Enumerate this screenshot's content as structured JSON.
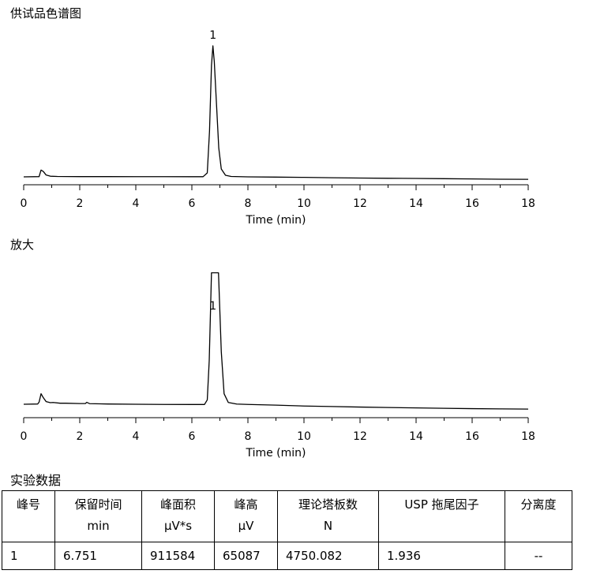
{
  "sections": {
    "top_title": "供试品色谱图",
    "zoom_title": "放大",
    "data_title": "实验数据"
  },
  "chart_data": [
    {
      "type": "line",
      "panel": "full",
      "xlabel": "Time (min)",
      "xlim": [
        0,
        18
      ],
      "xticks": [
        "0",
        "2",
        "4",
        "6",
        "8",
        "10",
        "12",
        "14",
        "16",
        "18"
      ],
      "peak_label": "1",
      "peak_label_x": 6.751,
      "series": [
        {
          "x": [
            0.0,
            0.55,
            0.62,
            0.7,
            0.8,
            0.95,
            1.2,
            2.0,
            3.0,
            4.0,
            5.0,
            6.0,
            6.4,
            6.55,
            6.63,
            6.7,
            6.751,
            6.8,
            6.88,
            6.96,
            7.05,
            7.2,
            7.4,
            8.0,
            9.0,
            10.0,
            11.0,
            12.0,
            13.0,
            14.0,
            15.0,
            16.0,
            17.0,
            18.0
          ],
          "y": [
            0.0,
            0.002,
            0.052,
            0.041,
            0.014,
            0.005,
            0.003,
            0.002,
            0.002,
            0.0015,
            0.0015,
            0.001,
            0.001,
            0.03,
            0.35,
            0.85,
            1.0,
            0.88,
            0.55,
            0.22,
            0.06,
            0.012,
            0.003,
            0.0,
            -0.002,
            -0.004,
            -0.007,
            -0.009,
            -0.011,
            -0.012,
            -0.014,
            -0.016,
            -0.018,
            -0.019
          ]
        }
      ]
    },
    {
      "type": "line",
      "panel": "zoom",
      "xlabel": "Time (min)",
      "xlim": [
        0,
        18
      ],
      "xticks": [
        "0",
        "2",
        "4",
        "6",
        "8",
        "10",
        "12",
        "14",
        "16",
        "18"
      ],
      "peak_label": "1",
      "peak_label_x": 6.751,
      "series": [
        {
          "x": [
            0.0,
            0.5,
            0.55,
            0.62,
            0.7,
            0.8,
            0.95,
            1.05,
            1.3,
            1.5,
            2.0,
            2.2,
            2.25,
            2.35,
            3.0,
            4.0,
            5.0,
            6.0,
            6.45,
            6.55,
            6.62,
            6.7,
            6.75,
            6.85,
            6.95,
            7.05,
            7.15,
            7.3,
            7.6,
            8.0,
            9.0,
            10.0,
            11.0,
            12.0,
            13.0,
            14.0,
            15.0,
            16.0,
            17.0,
            18.0
          ],
          "y": [
            0.0,
            0.003,
            0.025,
            0.12,
            0.075,
            0.03,
            0.018,
            0.02,
            0.012,
            0.012,
            0.008,
            0.008,
            0.022,
            0.007,
            0.003,
            0.0,
            -0.002,
            -0.003,
            -0.003,
            0.05,
            0.5,
            1.5,
            1.5,
            1.5,
            1.5,
            0.6,
            0.12,
            0.02,
            0.002,
            -0.002,
            -0.01,
            -0.02,
            -0.026,
            -0.032,
            -0.037,
            -0.042,
            -0.046,
            -0.05,
            -0.053,
            -0.055
          ]
        }
      ]
    }
  ],
  "table": {
    "headers": [
      {
        "line1": "峰号",
        "line2": ""
      },
      {
        "line1": "保留时间",
        "line2": "min"
      },
      {
        "line1": "峰面积",
        "line2": "μV*s"
      },
      {
        "line1": "峰高",
        "line2": "μV"
      },
      {
        "line1": "理论塔板数",
        "line2": "N"
      },
      {
        "line1": "USP 拖尾因子",
        "line2": ""
      },
      {
        "line1": "分离度",
        "line2": ""
      }
    ],
    "rows": [
      [
        "1",
        "6.751",
        "911584",
        "65087",
        "4750.082",
        "1.936",
        "--"
      ]
    ]
  }
}
